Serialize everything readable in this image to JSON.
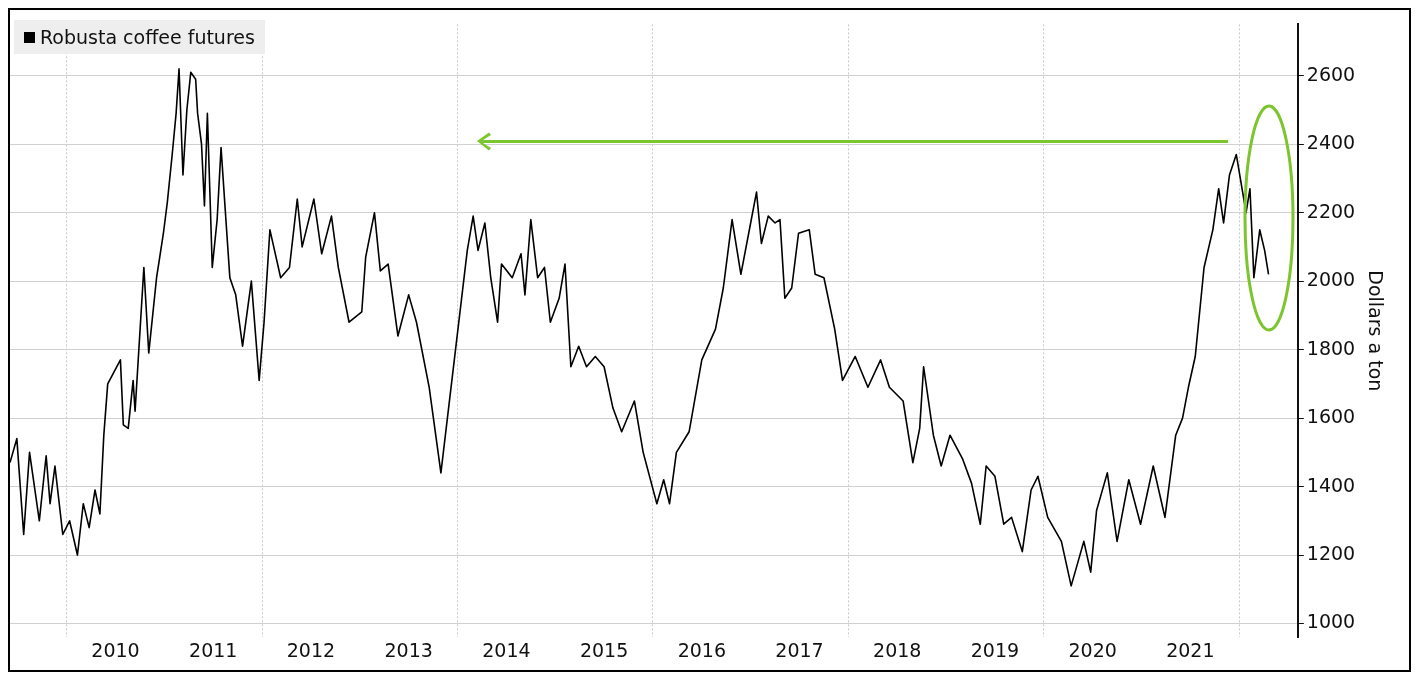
{
  "chart_data": {
    "type": "line",
    "ylabel": "Dollars a ton",
    "legend": "top left",
    "grid": true,
    "marker": "none",
    "line_style": "solid",
    "xlim": [
      2009.42,
      2022.6
    ],
    "ylim": [
      960,
      2750
    ],
    "xticks": [
      {
        "value": 2010,
        "label": null
      },
      {
        "value": 2010.5,
        "label": "2010"
      },
      {
        "value": 2011.5,
        "label": "2011"
      },
      {
        "value": 2012,
        "label": null
      },
      {
        "value": 2012.5,
        "label": "2012"
      },
      {
        "value": 2013.5,
        "label": "2013"
      },
      {
        "value": 2014,
        "label": null
      },
      {
        "value": 2014.5,
        "label": "2014"
      },
      {
        "value": 2015.5,
        "label": "2015"
      },
      {
        "value": 2016,
        "label": null
      },
      {
        "value": 2016.5,
        "label": "2016"
      },
      {
        "value": 2017.5,
        "label": "2017"
      },
      {
        "value": 2018,
        "label": null
      },
      {
        "value": 2018.5,
        "label": "2018"
      },
      {
        "value": 2019.5,
        "label": "2019"
      },
      {
        "value": 2020,
        "label": null
      },
      {
        "value": 2020.5,
        "label": "2020"
      },
      {
        "value": 2021.5,
        "label": "2021"
      },
      {
        "value": 2022,
        "label": null
      }
    ],
    "yticks": [
      1000,
      1200,
      1400,
      1600,
      1800,
      2000,
      2200,
      2400,
      2600
    ],
    "series": [
      {
        "name": "Robusta coffee futures",
        "color": "#000000",
        "x": [
          2009.42,
          2009.49,
          2009.56,
          2009.62,
          2009.72,
          2009.79,
          2009.83,
          2009.88,
          2009.96,
          2010.03,
          2010.11,
          2010.17,
          2010.23,
          2010.29,
          2010.34,
          2010.38,
          2010.42,
          2010.55,
          2010.58,
          2010.63,
          2010.68,
          2010.7,
          2010.79,
          2010.84,
          2010.92,
          2010.99,
          2011.03,
          2011.08,
          2011.12,
          2011.15,
          2011.19,
          2011.23,
          2011.27,
          2011.32,
          2011.34,
          2011.38,
          2011.41,
          2011.44,
          2011.49,
          2011.54,
          2011.58,
          2011.62,
          2011.67,
          2011.73,
          2011.8,
          2011.89,
          2011.97,
          2012.02,
          2012.08,
          2012.19,
          2012.28,
          2012.36,
          2012.41,
          2012.53,
          2012.61,
          2012.71,
          2012.78,
          2012.89,
          2013.02,
          2013.06,
          2013.15,
          2013.21,
          2013.29,
          2013.39,
          2013.5,
          2013.58,
          2013.71,
          2013.83,
          2014.1,
          2014.16,
          2014.21,
          2014.28,
          2014.34,
          2014.41,
          2014.45,
          2014.56,
          2014.65,
          2014.69,
          2014.75,
          2014.82,
          2014.89,
          2014.95,
          2015.04,
          2015.1,
          2015.16,
          2015.24,
          2015.32,
          2015.41,
          2015.5,
          2015.59,
          2015.68,
          2015.81,
          2015.9,
          2016.04,
          2016.11,
          2016.17,
          2016.24,
          2016.37,
          2016.5,
          2016.64,
          2016.72,
          2016.81,
          2016.9,
          2016.98,
          2017.06,
          2017.11,
          2017.18,
          2017.25,
          2017.3,
          2017.35,
          2017.42,
          2017.49,
          2017.6,
          2017.66,
          2017.75,
          2017.86,
          2017.94,
          2018.07,
          2018.2,
          2018.33,
          2018.42,
          2018.56,
          2018.66,
          2018.73,
          2018.77,
          2018.87,
          2018.95,
          2019.04,
          2019.17,
          2019.26,
          2019.35,
          2019.41,
          2019.5,
          2019.59,
          2019.67,
          2019.78,
          2019.87,
          2019.94,
          2020.04,
          2020.18,
          2020.28,
          2020.35,
          2020.41,
          2020.48,
          2020.54,
          2020.65,
          2020.75,
          2020.87,
          2020.99,
          2021.12,
          2021.24,
          2021.35,
          2021.42,
          2021.48,
          2021.55,
          2021.64,
          2021.73,
          2021.79,
          2021.84,
          2021.9,
          2021.97,
          2022.07,
          2022.11,
          2022.15,
          2022.21,
          2022.26,
          2022.3
        ],
        "values": [
          1470,
          1540,
          1260,
          1500,
          1300,
          1490,
          1350,
          1460,
          1260,
          1300,
          1200,
          1350,
          1280,
          1390,
          1320,
          1550,
          1700,
          1770,
          1580,
          1570,
          1710,
          1620,
          2040,
          1790,
          2010,
          2140,
          2230,
          2370,
          2490,
          2620,
          2310,
          2500,
          2610,
          2590,
          2490,
          2400,
          2220,
          2490,
          2040,
          2180,
          2390,
          2220,
          2010,
          1960,
          1810,
          2000,
          1710,
          1880,
          2150,
          2010,
          2040,
          2240,
          2100,
          2240,
          2080,
          2190,
          2040,
          1880,
          1910,
          2070,
          2200,
          2030,
          2050,
          1840,
          1960,
          1880,
          1690,
          1440,
          2090,
          2190,
          2090,
          2170,
          2010,
          1880,
          2050,
          2010,
          2080,
          1960,
          2180,
          2010,
          2040,
          1880,
          1950,
          2050,
          1750,
          1810,
          1750,
          1780,
          1750,
          1630,
          1560,
          1650,
          1500,
          1350,
          1420,
          1350,
          1500,
          1560,
          1770,
          1860,
          1980,
          2180,
          2020,
          2140,
          2260,
          2110,
          2190,
          2170,
          2180,
          1950,
          1980,
          2140,
          2150,
          2020,
          2010,
          1860,
          1710,
          1780,
          1690,
          1770,
          1690,
          1650,
          1470,
          1570,
          1750,
          1550,
          1460,
          1550,
          1480,
          1410,
          1290,
          1460,
          1430,
          1290,
          1310,
          1210,
          1390,
          1430,
          1310,
          1240,
          1110,
          1180,
          1240,
          1150,
          1330,
          1440,
          1240,
          1420,
          1290,
          1460,
          1310,
          1550,
          1600,
          1690,
          1780,
          2040,
          2150,
          2270,
          2170,
          2310,
          2370,
          2200,
          2270,
          2010,
          2150,
          2090,
          2020
        ]
      }
    ]
  }
}
